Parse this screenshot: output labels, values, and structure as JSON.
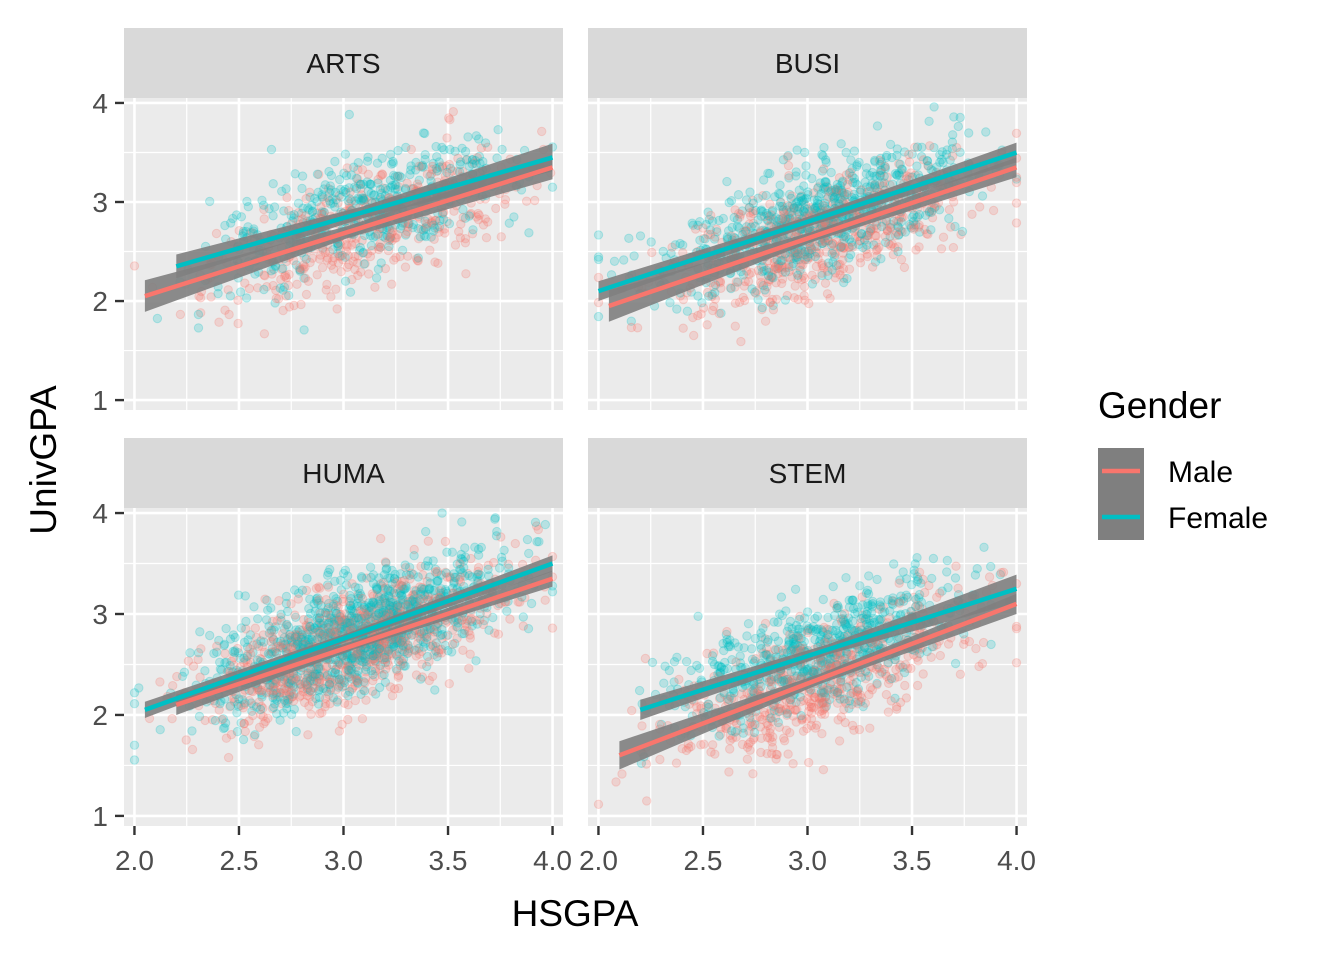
{
  "chart_data": {
    "type": "scatter",
    "xlabel": "HSGPA",
    "ylabel": "UnivGPA",
    "xlim": [
      1.95,
      4.05
    ],
    "ylim": [
      0.9,
      4.05
    ],
    "x_ticks": [
      2.0,
      2.5,
      3.0,
      3.5,
      4.0
    ],
    "x_tick_labels": [
      "2.0",
      "2.5",
      "3.0",
      "3.5",
      "4.0"
    ],
    "y_ticks": [
      1,
      2,
      3,
      4
    ],
    "y_tick_labels": [
      "1",
      "2",
      "3",
      "4"
    ],
    "grid": true,
    "legend": {
      "title": "Gender",
      "placement": "right",
      "entries": [
        {
          "name": "Male",
          "color": "#F8766D"
        },
        {
          "name": "Female",
          "color": "#00BFC4"
        }
      ]
    },
    "panels": [
      {
        "label": "ARTS",
        "point_cloud": {
          "n": 1000,
          "x_mean": 3.1,
          "x_sd": 0.35,
          "y_mean": 2.85,
          "y_sd": 0.4,
          "female_share": 0.55
        },
        "fits": [
          {
            "series": "Male",
            "x": [
              2.05,
              4.0
            ],
            "y": [
              2.05,
              3.35
            ],
            "band": [
              0.16,
              0.12
            ]
          },
          {
            "series": "Female",
            "x": [
              2.2,
              4.0
            ],
            "y": [
              2.35,
              3.45
            ],
            "band": [
              0.12,
              0.14
            ]
          }
        ]
      },
      {
        "label": "BUSI",
        "point_cloud": {
          "n": 1400,
          "x_mean": 3.05,
          "x_sd": 0.35,
          "y_mean": 2.8,
          "y_sd": 0.4,
          "female_share": 0.5
        },
        "fits": [
          {
            "series": "Male",
            "x": [
              2.05,
              4.0
            ],
            "y": [
              1.95,
              3.35
            ],
            "band": [
              0.16,
              0.1
            ]
          },
          {
            "series": "Female",
            "x": [
              2.0,
              4.0
            ],
            "y": [
              2.1,
              3.5
            ],
            "band": [
              0.1,
              0.1
            ]
          }
        ]
      },
      {
        "label": "HUMA",
        "point_cloud": {
          "n": 2000,
          "x_mean": 3.05,
          "x_sd": 0.35,
          "y_mean": 2.75,
          "y_sd": 0.4,
          "female_share": 0.55
        },
        "fits": [
          {
            "series": "Male",
            "x": [
              2.2,
              4.0
            ],
            "y": [
              2.1,
              3.35
            ],
            "band": [
              0.1,
              0.08
            ]
          },
          {
            "series": "Female",
            "x": [
              2.05,
              4.0
            ],
            "y": [
              2.05,
              3.5
            ],
            "band": [
              0.08,
              0.08
            ]
          }
        ]
      },
      {
        "label": "STEM",
        "point_cloud": {
          "n": 1300,
          "x_mean": 3.05,
          "x_sd": 0.35,
          "y_mean": 2.55,
          "y_sd": 0.4,
          "female_share": 0.5
        },
        "fits": [
          {
            "series": "Male",
            "x": [
              2.1,
              4.0
            ],
            "y": [
              1.6,
              3.1
            ],
            "band": [
              0.14,
              0.1
            ]
          },
          {
            "series": "Female",
            "x": [
              2.2,
              4.0
            ],
            "y": [
              2.05,
              3.25
            ],
            "band": [
              0.1,
              0.14
            ]
          }
        ]
      }
    ]
  }
}
